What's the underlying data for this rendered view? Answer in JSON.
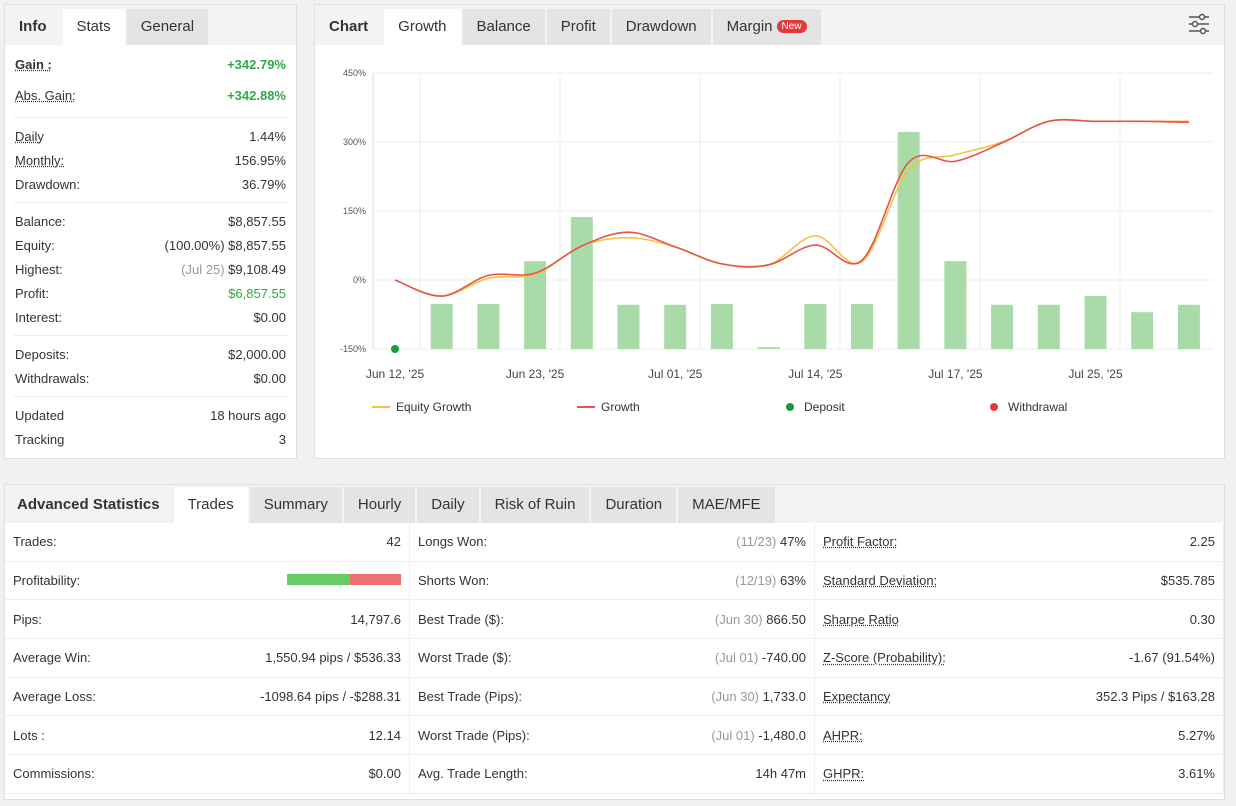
{
  "info_panel": {
    "tabs": [
      "Info",
      "Stats",
      "General"
    ],
    "active_tab": "Stats",
    "groups": [
      [
        {
          "label": "Gain :",
          "value": "+342.79%",
          "green": true,
          "bold": true,
          "u": true
        },
        {
          "label": "Abs. Gain:",
          "value": "+342.88%",
          "green": true,
          "u": true
        }
      ],
      [
        {
          "label": "Daily",
          "value": "1.44%",
          "u": true
        },
        {
          "label": "Monthly:",
          "value": "156.95%",
          "u": true
        },
        {
          "label": "Drawdown:",
          "value": "36.79%"
        }
      ],
      [
        {
          "label": "Balance:",
          "value": "$8,857.55"
        },
        {
          "label": "Equity:",
          "prefix": "(100.00%)",
          "value": "$8,857.55"
        },
        {
          "label": "Highest:",
          "prefix": "(Jul 25)",
          "value": "$9,108.49"
        },
        {
          "label": "Profit:",
          "value": "$6,857.55",
          "green": true
        },
        {
          "label": "Interest:",
          "value": "$0.00"
        }
      ],
      [
        {
          "label": "Deposits:",
          "value": "$2,000.00"
        },
        {
          "label": "Withdrawals:",
          "value": "$0.00"
        }
      ],
      [
        {
          "label": "Updated",
          "value": "18 hours ago"
        },
        {
          "label": "Tracking",
          "value": "3"
        }
      ]
    ]
  },
  "chart_panel": {
    "tabs": [
      "Chart",
      "Growth",
      "Balance",
      "Profit",
      "Drawdown",
      "Margin"
    ],
    "active_tab": "Growth",
    "new_badge": "New",
    "settings_icon": "sliders-icon"
  },
  "chart_data": {
    "type": "line+bar",
    "y_ticks": [
      "450%",
      "300%",
      "150%",
      "0%",
      "-150%"
    ],
    "ylim": [
      -150,
      450
    ],
    "x_labels": [
      "Jun 12, '25",
      "Jun 23, '25",
      "Jul 01, '25",
      "Jul 14, '25",
      "Jul 17, '25",
      "Jul 25, '25"
    ],
    "series": [
      {
        "name": "Equity Growth",
        "color": "#f5c242",
        "values": [
          0,
          -35,
          4,
          12,
          74,
          92,
          72,
          35,
          33,
          96,
          40,
          240,
          272,
          300,
          345,
          345,
          345,
          345
        ]
      },
      {
        "name": "Growth",
        "color": "#e5534b",
        "values": [
          0,
          -35,
          10,
          15,
          74,
          104,
          72,
          35,
          33,
          76,
          43,
          256,
          258,
          298,
          345,
          345,
          345,
          343
        ]
      }
    ],
    "bars": {
      "color": "#a8dba8",
      "values": [
        -52,
        -52,
        41,
        137,
        -54,
        -54,
        -52,
        -146,
        -52,
        -52,
        322,
        41,
        -54,
        -54,
        -35,
        -70,
        -54
      ]
    },
    "deposit": {
      "name": "Deposit",
      "color": "#1a9a3a",
      "value": -150
    },
    "withdrawal": {
      "name": "Withdrawal",
      "color": "#e53935"
    }
  },
  "advanced": {
    "title": "Advanced Statistics",
    "tabs": [
      "Trades",
      "Summary",
      "Hourly",
      "Daily",
      "Risk of Ruin",
      "Duration",
      "MAE/MFE"
    ],
    "active_tab": "Trades",
    "rows": [
      [
        {
          "l": "Trades:",
          "v": "42"
        },
        {
          "l": "Longs Won:",
          "p": "(11/23)",
          "v": "47%"
        },
        {
          "l": "Profit Factor:",
          "v": "2.25",
          "u": true
        }
      ],
      [
        {
          "l": "Profitability:",
          "v": ""
        },
        {
          "l": "Shorts Won:",
          "p": "(12/19)",
          "v": "63%"
        },
        {
          "l": "Standard Deviation:",
          "v": "$535.785",
          "u": true
        }
      ],
      [
        {
          "l": "Pips:",
          "v": "14,797.6"
        },
        {
          "l": "Best Trade ($):",
          "p": "(Jun 30)",
          "v": "866.50"
        },
        {
          "l": "Sharpe Ratio",
          "v": "0.30",
          "u": true
        }
      ],
      [
        {
          "l": "Average Win:",
          "v": "1,550.94 pips / $536.33"
        },
        {
          "l": "Worst Trade ($):",
          "p": "(Jul 01)",
          "v": "-740.00"
        },
        {
          "l": "Z-Score (Probability):",
          "v": "-1.67 (91.54%)",
          "u": true
        }
      ],
      [
        {
          "l": "Average Loss:",
          "v": "-1098.64 pips / -$288.31"
        },
        {
          "l": "Best Trade (Pips):",
          "p": "(Jun 30)",
          "v": "1,733.0"
        },
        {
          "l": "Expectancy",
          "v": "352.3 Pips / $163.28",
          "u": true
        }
      ],
      [
        {
          "l": "Lots :",
          "v": "12.14"
        },
        {
          "l": "Worst Trade (Pips):",
          "p": "(Jul 01)",
          "v": "-1,480.0"
        },
        {
          "l": "AHPR:",
          "v": "5.27%",
          "u": true
        }
      ],
      [
        {
          "l": "Commissions:",
          "v": "$0.00"
        },
        {
          "l": "Avg. Trade Length:",
          "v": "14h 47m"
        },
        {
          "l": "GHPR:",
          "v": "3.61%",
          "u": true
        }
      ]
    ],
    "profitability": {
      "won_pct": 55,
      "won_color": "#66cc66",
      "lost_color": "#f07070"
    }
  }
}
